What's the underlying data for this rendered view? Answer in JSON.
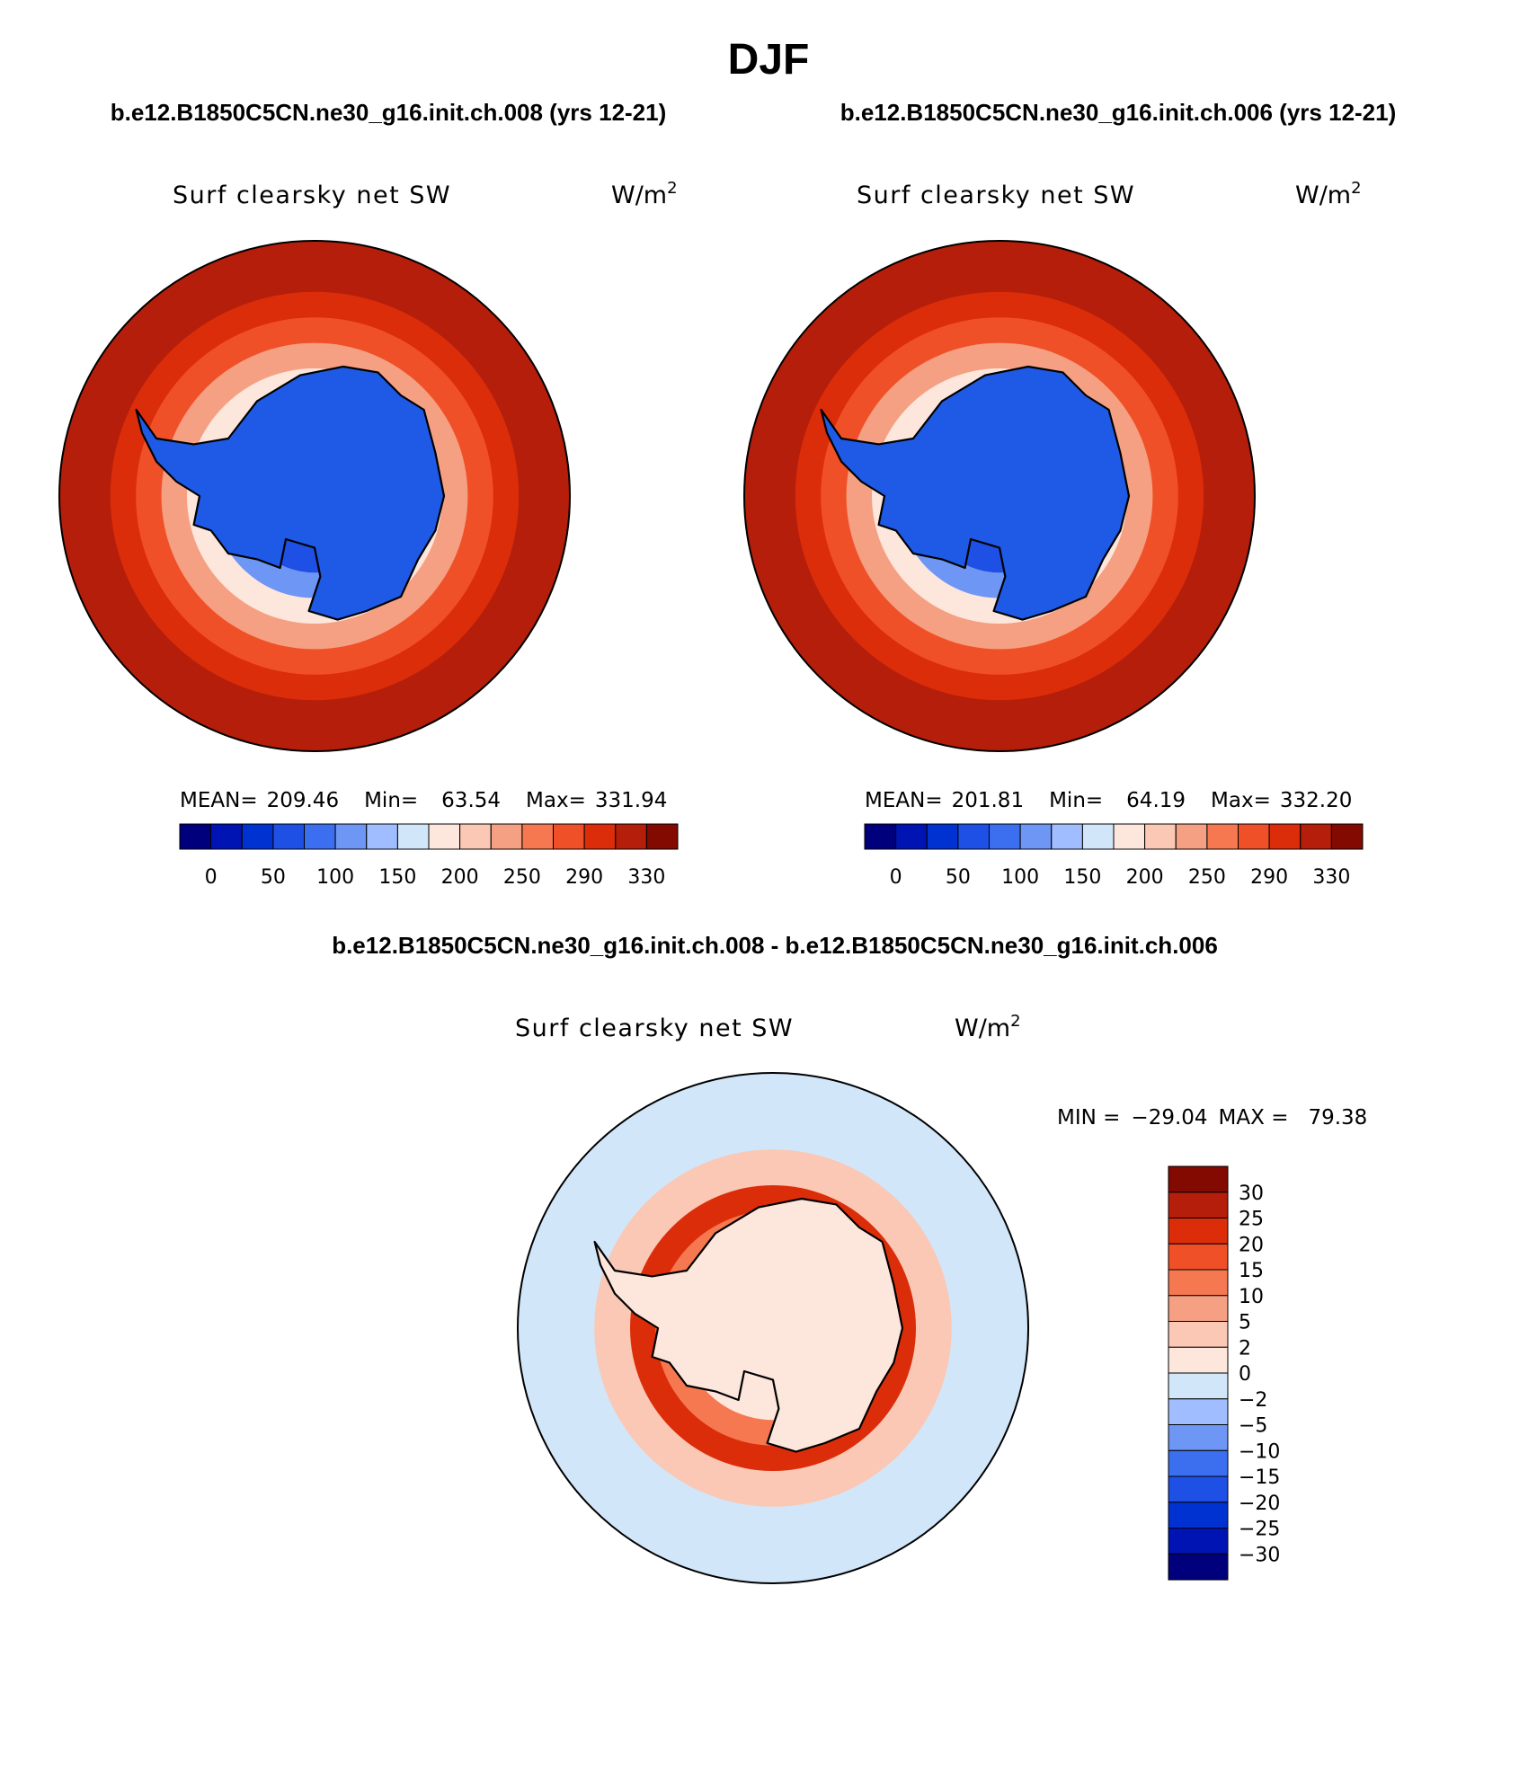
{
  "season": "DJF",
  "colors": {
    "abs_levels": [
      "#00007d",
      "#0014b4",
      "#0032d2",
      "#1e50e6",
      "#3c6ef0",
      "#6e96f5",
      "#a0beff",
      "#d2e6fa",
      "#fde6dc",
      "#fac8b4",
      "#f5a082",
      "#f57850",
      "#f05028",
      "#dc2d0a",
      "#b41e0a",
      "#820a00"
    ],
    "diff_levels": [
      "#00007d",
      "#0014b4",
      "#0032d2",
      "#1e50e6",
      "#3c6ef0",
      "#6e96f5",
      "#a0beff",
      "#d2e6fa",
      "#fde6dc",
      "#fac8b4",
      "#f5a082",
      "#f57850",
      "#f05028",
      "#dc2d0a",
      "#b41e0a",
      "#820a00"
    ],
    "land_blue": "#1e5ae6",
    "coast": "#000000"
  },
  "chart_data": [
    {
      "type": "heatmap",
      "projection": "south-polar-stereographic",
      "title": "b.e12.B1850C5CN.ne30_g16.init.ch.008 (yrs 12-21)",
      "variable": "Surf clearsky net SW",
      "units": "W/m",
      "units_sup": "2",
      "stats": {
        "mean_label": "MEAN=",
        "mean": "209.46",
        "min_label": "Min=",
        "min": "63.54",
        "max_label": "Max=",
        "max": "331.94"
      },
      "colorbar_ticks": [
        "0",
        "50",
        "100",
        "150",
        "200",
        "250",
        "290",
        "330"
      ],
      "zonal_bands": [
        {
          "lat": -40,
          "value": 320
        },
        {
          "lat": -50,
          "value": 300
        },
        {
          "lat": -55,
          "value": 275
        },
        {
          "lat": -60,
          "value": 235
        },
        {
          "lat": -65,
          "value": 190
        },
        {
          "lat": -70,
          "value": 130
        },
        {
          "lat": -75,
          "value": 80
        }
      ]
    },
    {
      "type": "heatmap",
      "projection": "south-polar-stereographic",
      "title": "b.e12.B1850C5CN.ne30_g16.init.ch.006 (yrs 12-21)",
      "variable": "Surf clearsky net SW",
      "units": "W/m",
      "units_sup": "2",
      "stats": {
        "mean_label": "MEAN=",
        "mean": "201.81",
        "min_label": "Min=",
        "min": "64.19",
        "max_label": "Max=",
        "max": "332.20"
      },
      "colorbar_ticks": [
        "0",
        "50",
        "100",
        "150",
        "200",
        "250",
        "290",
        "330"
      ],
      "zonal_bands": [
        {
          "lat": -40,
          "value": 320
        },
        {
          "lat": -50,
          "value": 295
        },
        {
          "lat": -55,
          "value": 265
        },
        {
          "lat": -60,
          "value": 225
        },
        {
          "lat": -65,
          "value": 180
        },
        {
          "lat": -70,
          "value": 125
        },
        {
          "lat": -75,
          "value": 80
        }
      ]
    },
    {
      "type": "heatmap",
      "projection": "south-polar-stereographic",
      "title": "b.e12.B1850C5CN.ne30_g16.init.ch.008 - b.e12.B1850C5CN.ne30_g16.init.ch.006",
      "variable": "Surf clearsky net SW",
      "units": "W/m",
      "units_sup": "2",
      "stats": {
        "min_label": "MIN =",
        "min": "−29.04",
        "max_label": "MAX =",
        "max": "79.38"
      },
      "colorbar_ticks": [
        "30",
        "25",
        "20",
        "15",
        "10",
        "5",
        "2",
        "0",
        "−2",
        "−5",
        "−10",
        "−15",
        "−20",
        "−25",
        "−30"
      ],
      "zonal_bands": [
        {
          "lat": -40,
          "value": -1
        },
        {
          "lat": -55,
          "value": 3
        },
        {
          "lat": -62,
          "value": 22
        },
        {
          "lat": -67,
          "value": 12
        },
        {
          "lat": -72,
          "value": 1
        }
      ]
    }
  ]
}
